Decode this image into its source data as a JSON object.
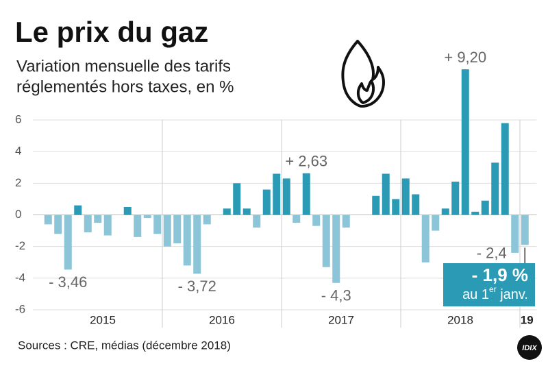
{
  "chart_data": {
    "type": "bar",
    "title": "Le prix du gaz",
    "subtitle": [
      "Variation mensuelle des tarifs",
      "réglementés hors taxes, en %"
    ],
    "source": "Sources : CRE, médias (décembre 2018)",
    "logo": "IDIX",
    "year_labels": [
      "2015",
      "2016",
      "2017",
      "2018",
      "19"
    ],
    "values": [
      -0.6,
      -1.2,
      -3.46,
      0.6,
      -1.1,
      -0.5,
      -1.3,
      0,
      0.5,
      -1.4,
      -0.2,
      -1.2,
      -2.0,
      -1.8,
      -3.2,
      -3.72,
      -0.6,
      0,
      0.4,
      2.0,
      0.4,
      -0.8,
      1.6,
      2.6,
      2.3,
      -0.5,
      2.63,
      -0.7,
      -3.3,
      -4.3,
      -0.8,
      0,
      0,
      1.2,
      2.6,
      1.0,
      2.3,
      1.3,
      -3.0,
      -1.0,
      0.4,
      2.1,
      9.2,
      0.2,
      0.9,
      3.3,
      5.8,
      -2.4,
      -1.9
    ],
    "value_labels": [
      null,
      null,
      "- 3,46",
      null,
      null,
      null,
      null,
      null,
      null,
      null,
      null,
      null,
      null,
      null,
      null,
      "- 3,72",
      null,
      null,
      null,
      null,
      null,
      null,
      null,
      null,
      null,
      null,
      "+ 2,63",
      null,
      null,
      "- 4,3",
      null,
      null,
      null,
      null,
      null,
      null,
      null,
      null,
      null,
      null,
      null,
      null,
      "+ 9,20",
      null,
      null,
      null,
      null,
      "- 2,4",
      null
    ],
    "positive_color": "#2b9ab4",
    "negative_color": "#8cc4d8",
    "ylim": [
      -6,
      6
    ],
    "yticks": [
      -6,
      -4,
      -2,
      0,
      2,
      4,
      6
    ],
    "grid": true,
    "callout": {
      "value": "- 1,9 %",
      "note": "au 1",
      "note_sup": "er",
      "note_end": " janv."
    }
  }
}
